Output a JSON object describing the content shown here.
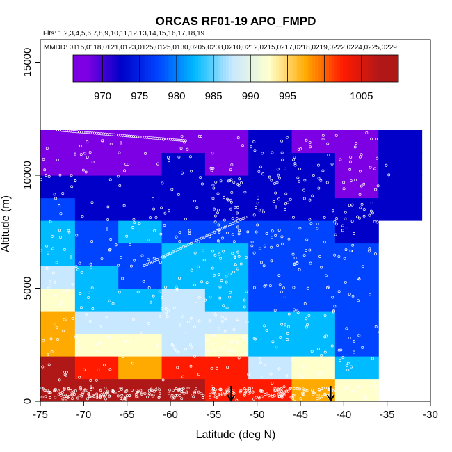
{
  "chart_data": {
    "type": "heatmap",
    "title": "ORCAS RF01-19 APO_FMPD",
    "flights_label": "Flts: 1,2,3,4,5,6,7,8,9,10,11,12,13,14,15,16,17,18,19",
    "dates_label": "MMDD: 0115,0118,0121,0123,0125,0125,0130,0205,0208,0210,0212,0215,0217,0218,0219,0222,0224,0225,0229",
    "xlabel": "Latitude (deg N)",
    "ylabel": "Altitude (m)",
    "xlim": [
      -75,
      -30
    ],
    "ylim": [
      0,
      16000
    ],
    "x_ticks": [
      -75,
      -70,
      -65,
      -60,
      -55,
      -50,
      -45,
      -40,
      -35,
      -30
    ],
    "x_tick_labels": [
      "-75",
      "-70",
      "-65",
      "-60",
      "-55",
      "-50",
      "-45",
      "-40",
      "-35",
      "-30"
    ],
    "y_ticks": [
      0,
      5000,
      10000,
      15000
    ],
    "y_tick_labels": [
      "0",
      "5000",
      "10000",
      "15000"
    ],
    "lat_bin_edges": [
      -76,
      -71,
      -66,
      -61,
      -56,
      -51,
      -46,
      -41,
      -36,
      -31
    ],
    "alt_bin_edges": [
      0,
      1000,
      2000,
      3000,
      4000,
      5000,
      6000,
      7000,
      8000,
      9000,
      10000,
      11000,
      12000
    ],
    "colorbar": {
      "range": [
        966,
        1010
      ],
      "ticks": [
        970,
        975,
        980,
        985,
        990,
        995,
        1005
      ],
      "tick_labels": [
        "970",
        "975",
        "980",
        "985",
        "990",
        "995",
        "1005"
      ],
      "boundaries": [
        966,
        970,
        975,
        980,
        985,
        990,
        995,
        1000,
        1005,
        1010
      ],
      "colors": [
        "#7d00e4",
        "#0000c8",
        "#0044ff",
        "#00bbff",
        "#c8e8ff",
        "#ffffcc",
        "#ffaa00",
        "#ff1a00",
        "#b01818"
      ]
    },
    "values": [
      [
        1009,
        1007,
        1006,
        1005,
        1004,
        1003,
        998,
        994,
        null
      ],
      [
        1005,
        1003,
        995,
        1003,
        1001,
        987,
        990,
        982,
        null
      ],
      [
        998,
        990,
        993,
        989,
        992,
        982,
        982,
        975,
        null
      ],
      [
        996,
        987,
        989,
        987,
        989,
        981,
        980,
        975,
        null
      ],
      [
        994,
        983,
        982,
        986,
        984,
        978,
        978,
        977,
        null
      ],
      [
        985,
        983,
        978,
        984,
        982,
        977,
        976,
        976,
        null
      ],
      [
        982,
        979,
        977,
        983,
        980,
        976,
        975,
        975,
        null
      ],
      [
        980,
        978,
        981,
        978,
        977,
        975,
        975,
        974,
        null
      ],
      [
        976,
        973,
        973,
        972,
        972,
        973,
        973,
        971,
        973
      ],
      [
        974,
        971,
        971,
        970,
        970,
        971,
        970,
        969,
        970
      ],
      [
        967,
        968,
        968,
        970,
        968,
        971,
        970,
        969,
        970
      ],
      [
        967,
        967,
        967,
        968,
        967,
        970,
        969,
        968,
        971
      ]
    ],
    "arrows_at_latitude": [
      -53,
      -41.5
    ]
  }
}
